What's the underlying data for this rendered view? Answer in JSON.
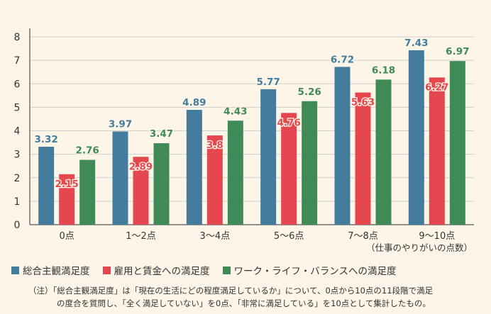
{
  "chart_data": {
    "type": "bar",
    "categories": [
      "0点",
      "1〜2点",
      "3〜4点",
      "5〜6点",
      "7〜8点",
      "9〜10点"
    ],
    "series": [
      {
        "name": "総合主観満足度",
        "color": "#437c9c",
        "values": [
          3.32,
          3.97,
          4.89,
          5.77,
          6.72,
          7.43
        ],
        "labels": [
          "3.32",
          "3.97",
          "4.89",
          "5.77",
          "6.72",
          "7.43"
        ]
      },
      {
        "name": "雇用と賃金への満足度",
        "color": "#e6464d",
        "values": [
          2.15,
          2.89,
          3.8,
          4.76,
          5.63,
          6.27
        ],
        "labels": [
          "2.15",
          "2.89",
          "3.8",
          "4.76",
          "5.63",
          "6.27"
        ]
      },
      {
        "name": "ワーク・ライフ・バランスへの満足度",
        "color": "#3f8a57",
        "values": [
          2.76,
          3.47,
          4.43,
          5.26,
          6.18,
          6.97
        ],
        "labels": [
          "2.76",
          "3.47",
          "4.43",
          "5.26",
          "6.18",
          "6.97"
        ]
      }
    ],
    "ylim": [
      0,
      8
    ],
    "yticks": [
      "0",
      "1",
      "2",
      "3",
      "4",
      "5",
      "6",
      "7",
      "8"
    ],
    "xlabel": "（仕事のやりがいの点数）",
    "ylabel": "",
    "grid": true,
    "legend_position": "bottom"
  },
  "note": {
    "line1": "（注）「総合主観満足度」は「現在の生活にどの程度満足しているか」について、0点から10点の11段階で満足",
    "line2": "の度合を質問し、「全く満足していない」を0点、「非常に満足している」を10点として集計したもの。"
  },
  "colors": {
    "background": "#fdf6e8",
    "grid": "#cfcfcf",
    "axis": "#555555"
  }
}
